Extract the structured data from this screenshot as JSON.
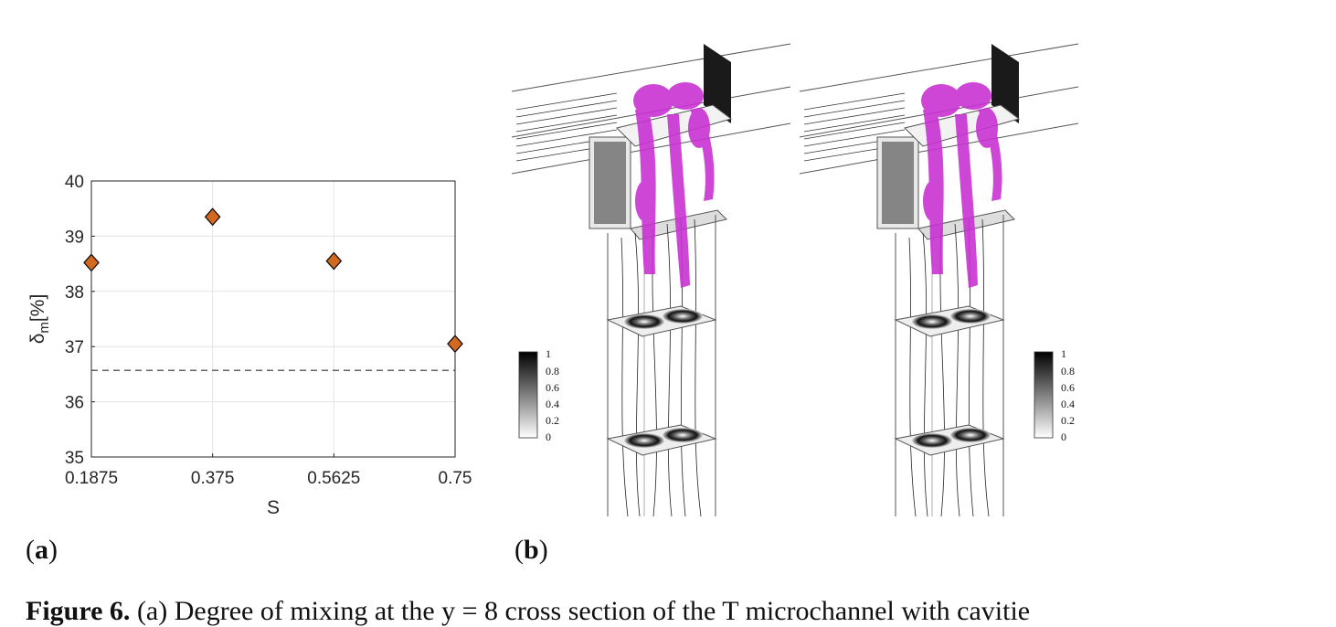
{
  "chart_data": {
    "type": "scatter",
    "x": [
      0.1875,
      0.375,
      0.5625,
      0.75
    ],
    "y": [
      38.52,
      39.35,
      38.55,
      37.05
    ],
    "categories": [
      "0.1875",
      "0.375",
      "0.5625",
      "0.75"
    ],
    "xlabel": "S",
    "ylabel_main": "δ",
    "ylabel_sub": "m",
    "ylabel_unit": "[%]",
    "ylim": [
      35,
      40
    ],
    "yticks": [
      35,
      36,
      37,
      38,
      39,
      40
    ],
    "reference_line": 36.57,
    "grid": true,
    "marker": "diamond",
    "marker_color": "#d2691e"
  },
  "figure": {
    "label_a": "a",
    "label_b": "b",
    "colorbar_ticks": [
      "1",
      "0.8",
      "0.6",
      "0.4",
      "0.2",
      "0"
    ],
    "isosurface_color": "#c832d2",
    "caption_bold": "Figure 6.",
    "caption_rest": " (a) Degree of mixing at the y = 8 cross section of the T microchannel with cavitie"
  }
}
